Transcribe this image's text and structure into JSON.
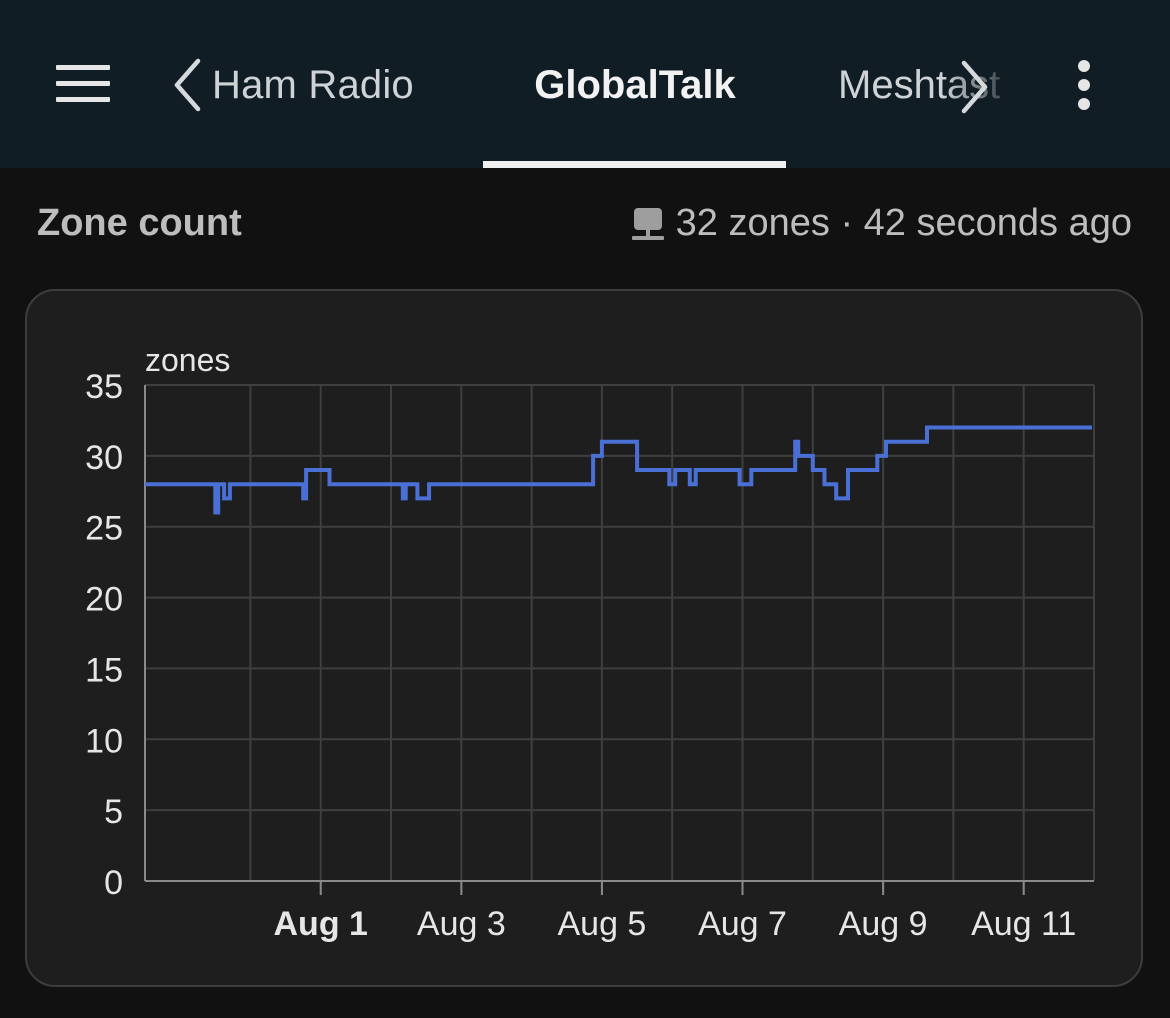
{
  "header": {
    "prev_tab": "Ham Radio",
    "active_tab": "GlobalTalk",
    "next_tab": "Meshtast",
    "menu_icon": "hamburger-menu-icon",
    "prev_icon": "chevron-left-icon",
    "next_icon": "chevron-right-icon",
    "overflow_icon": "more-vertical-icon"
  },
  "section": {
    "title": "Zone count",
    "summary": "32 zones · 42 seconds ago",
    "summary_icon": "network-icon"
  },
  "colors": {
    "header_bg": "#101d24",
    "page_bg": "#111111",
    "card_bg": "#1e1e1e",
    "line": "#4a70d6",
    "grid": "#3f3f3f"
  },
  "chart_data": {
    "type": "line",
    "interpolation": "step",
    "ylabel": "zones",
    "ylim": [
      0,
      35
    ],
    "yticks": [
      "0",
      "5",
      "10",
      "15",
      "20",
      "25",
      "30",
      "35"
    ],
    "xlim": [
      "2024-07-29T12:00",
      "2024-08-12T00:00"
    ],
    "xticks": [
      {
        "date": "2024-08-01",
        "label": "Aug 1",
        "bold": true
      },
      {
        "date": "2024-08-03",
        "label": "Aug 3",
        "bold": false
      },
      {
        "date": "2024-08-05",
        "label": "Aug 5",
        "bold": false
      },
      {
        "date": "2024-08-07",
        "label": "Aug 7",
        "bold": false
      },
      {
        "date": "2024-08-09",
        "label": "Aug 9",
        "bold": false
      },
      {
        "date": "2024-08-11",
        "label": "Aug 11",
        "bold": false
      }
    ],
    "minor_gridlines": [
      "2024-07-31",
      "2024-08-02",
      "2024-08-04",
      "2024-08-06",
      "2024-08-08",
      "2024-08-10",
      "2024-08-12"
    ],
    "grid": true,
    "series": [
      {
        "color": "#4a70d6",
        "points": [
          [
            "2024-07-29T12:00",
            28
          ],
          [
            "2024-07-30T12:00",
            26
          ],
          [
            "2024-07-30T13:00",
            28
          ],
          [
            "2024-07-30T15:00",
            27
          ],
          [
            "2024-07-30T17:00",
            28
          ],
          [
            "2024-07-31T18:00",
            27
          ],
          [
            "2024-07-31T19:00",
            29
          ],
          [
            "2024-08-01T03:00",
            28
          ],
          [
            "2024-08-02T04:00",
            27
          ],
          [
            "2024-08-02T05:00",
            28
          ],
          [
            "2024-08-02T09:00",
            27
          ],
          [
            "2024-08-02T13:00",
            28
          ],
          [
            "2024-08-04T21:00",
            30
          ],
          [
            "2024-08-05T00:00",
            31
          ],
          [
            "2024-08-05T12:00",
            29
          ],
          [
            "2024-08-05T23:00",
            28
          ],
          [
            "2024-08-06T01:00",
            29
          ],
          [
            "2024-08-06T06:00",
            28
          ],
          [
            "2024-08-06T08:00",
            29
          ],
          [
            "2024-08-06T23:00",
            28
          ],
          [
            "2024-08-07T03:00",
            29
          ],
          [
            "2024-08-07T18:00",
            31
          ],
          [
            "2024-08-07T19:00",
            30
          ],
          [
            "2024-08-08T00:00",
            29
          ],
          [
            "2024-08-08T04:00",
            28
          ],
          [
            "2024-08-08T08:00",
            27
          ],
          [
            "2024-08-08T12:00",
            29
          ],
          [
            "2024-08-08T22:00",
            30
          ],
          [
            "2024-08-09T01:00",
            31
          ],
          [
            "2024-08-09T15:00",
            32
          ],
          [
            "2024-08-11T23:00",
            32
          ]
        ]
      }
    ]
  }
}
